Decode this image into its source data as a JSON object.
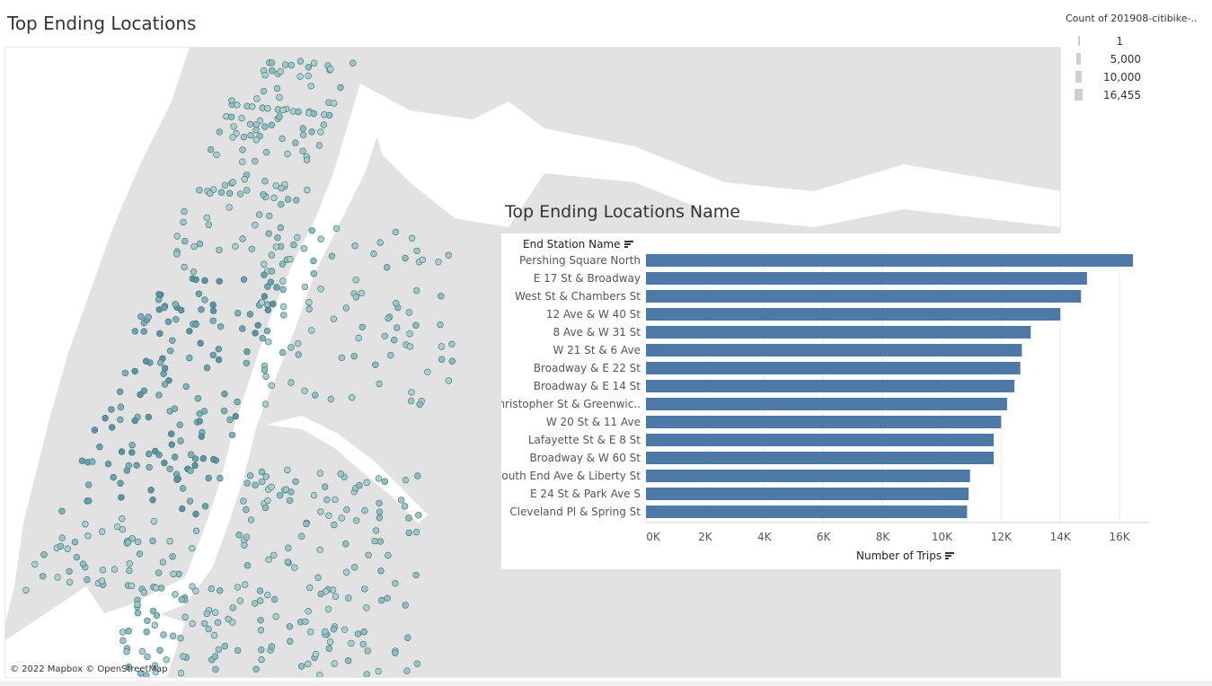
{
  "dashboard": {
    "title": "Top Ending Locations"
  },
  "map": {
    "attribution": "© 2022 Mapbox © OpenStreetMap",
    "marker_color": "#7fb2b8"
  },
  "legend": {
    "title": "Count of 201908-citibike-..",
    "items": [
      {
        "label": "1"
      },
      {
        "label": "5,000"
      },
      {
        "label": "10,000"
      },
      {
        "label": "16,455"
      }
    ]
  },
  "chart_data": {
    "type": "bar",
    "orientation": "horizontal",
    "title": "Top Ending Locations Name",
    "row_header": "End Station Name",
    "xlabel": "Number of Trips",
    "bar_color": "#4e79a7",
    "categories": [
      "Pershing Square North",
      "E 17 St & Broadway",
      "West St & Chambers St",
      "12 Ave & W 40 St",
      "8 Ave & W 31 St",
      "W 21 St & 6 Ave",
      "Broadway & E 22 St",
      "Broadway & E 14 St",
      "Christopher St & Greenwic..",
      "W 20 St & 11 Ave",
      "Lafayette St & E 8 St",
      "Broadway & W 60 St",
      "South End Ave & Liberty St",
      "E 24 St & Park Ave S",
      "Cleveland Pl & Spring St"
    ],
    "values": [
      16455,
      14900,
      14700,
      14000,
      13000,
      12700,
      12650,
      12450,
      12200,
      12000,
      11750,
      11750,
      10950,
      10900,
      10850
    ],
    "xlim": [
      0,
      17000
    ],
    "ticks": [
      0,
      2000,
      4000,
      6000,
      8000,
      10000,
      12000,
      14000,
      16000
    ],
    "tick_labels": [
      "0K",
      "2K",
      "4K",
      "6K",
      "8K",
      "10K",
      "12K",
      "14K",
      "16K"
    ],
    "grid": true
  }
}
